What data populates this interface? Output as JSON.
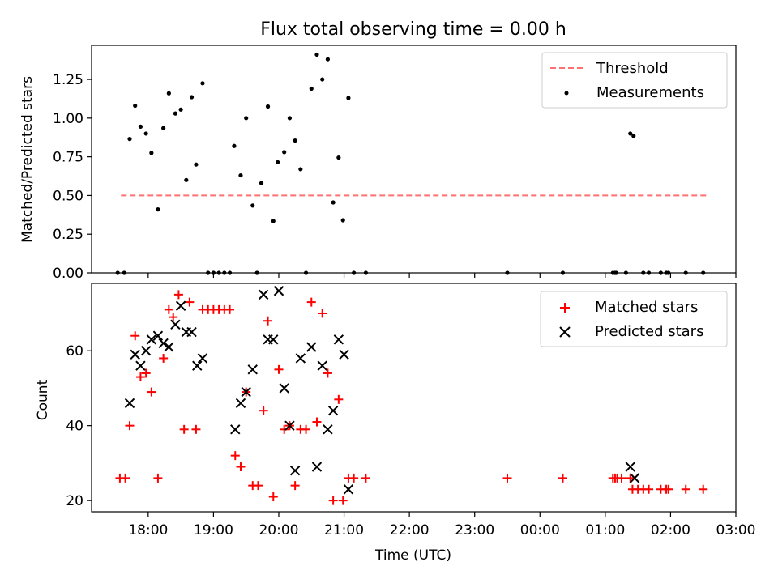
{
  "title": "Flux total observing time = 0.00 h",
  "chart_data": [
    {
      "type": "scatter",
      "ylabel": "Matched/Predicted stars",
      "xlabel": "",
      "xlim": [
        "17:08",
        "03:00"
      ],
      "ylim": [
        0,
        1.47
      ],
      "yticks": [
        "0.00",
        "0.25",
        "0.50",
        "0.75",
        "1.00",
        "1.25"
      ],
      "grid": false,
      "legend_position": "top-right",
      "threshold": {
        "name": "Threshold",
        "value": 0.5,
        "x_start": "17:35",
        "x_end": "02:35",
        "color": "#ff7070"
      },
      "series": [
        {
          "name": "Measurements",
          "color": "#000000",
          "marker": "dot",
          "points": [
            [
              "17:32",
              0
            ],
            [
              "17:38",
              0
            ],
            [
              "17:43",
              0.865
            ],
            [
              "17:48",
              1.08
            ],
            [
              "17:53",
              0.945
            ],
            [
              "17:58",
              0.9
            ],
            [
              "18:03",
              0.775
            ],
            [
              "18:09",
              0.41
            ],
            [
              "18:14",
              0.935
            ],
            [
              "18:19",
              1.16
            ],
            [
              "18:25",
              1.03
            ],
            [
              "18:30",
              1.055
            ],
            [
              "18:35",
              0.6
            ],
            [
              "18:40",
              1.135
            ],
            [
              "18:44",
              0.7
            ],
            [
              "18:50",
              1.225
            ],
            [
              "18:55",
              0
            ],
            [
              "19:00",
              0
            ],
            [
              "19:05",
              0
            ],
            [
              "19:10",
              0
            ],
            [
              "19:15",
              0
            ],
            [
              "19:19",
              0.82
            ],
            [
              "19:25",
              0.63
            ],
            [
              "19:30",
              1.0
            ],
            [
              "19:36",
              0.435
            ],
            [
              "19:40",
              0
            ],
            [
              "19:44",
              0.58
            ],
            [
              "19:50",
              1.075
            ],
            [
              "19:55",
              0.335
            ],
            [
              "19:59",
              0.715
            ],
            [
              "20:05",
              0.78
            ],
            [
              "20:10",
              1.0
            ],
            [
              "20:15",
              0.855
            ],
            [
              "20:20",
              0.67
            ],
            [
              "20:25",
              0
            ],
            [
              "20:30",
              1.19
            ],
            [
              "20:35",
              1.41
            ],
            [
              "20:40",
              1.25
            ],
            [
              "20:45",
              1.38
            ],
            [
              "20:50",
              0.455
            ],
            [
              "20:55",
              0.745
            ],
            [
              "20:59",
              0.34
            ],
            [
              "21:04",
              1.13
            ],
            [
              "21:09",
              0
            ],
            [
              "21:20",
              0
            ],
            [
              "23:30",
              0
            ],
            [
              "00:21",
              0
            ],
            [
              "01:07",
              0
            ],
            [
              "01:09",
              0
            ],
            [
              "01:10",
              0
            ],
            [
              "01:19",
              0
            ],
            [
              "01:23",
              0.9
            ],
            [
              "01:26",
              0.885
            ],
            [
              "01:35",
              0
            ],
            [
              "01:40",
              0
            ],
            [
              "01:51",
              0
            ],
            [
              "01:56",
              0
            ],
            [
              "01:58",
              0
            ],
            [
              "02:14",
              0
            ],
            [
              "02:30",
              0
            ]
          ]
        }
      ]
    },
    {
      "type": "scatter",
      "ylabel": "Count",
      "xlabel": "Time (UTC)",
      "xlim": [
        "17:08",
        "03:00"
      ],
      "ylim": [
        17,
        78
      ],
      "yticks": [
        "20",
        "40",
        "60"
      ],
      "xticks": [
        "18:00",
        "19:00",
        "20:00",
        "21:00",
        "22:00",
        "23:00",
        "00:00",
        "01:00",
        "02:00",
        "03:00"
      ],
      "grid": false,
      "legend_position": "top-right",
      "series": [
        {
          "name": "Matched stars",
          "color": "#ff0000",
          "marker": "plus",
          "points": [
            [
              "17:34",
              26
            ],
            [
              "17:39",
              26
            ],
            [
              "17:43",
              40
            ],
            [
              "17:48",
              64
            ],
            [
              "17:53",
              53
            ],
            [
              "17:58",
              54
            ],
            [
              "18:03",
              49
            ],
            [
              "18:09",
              26
            ],
            [
              "18:14",
              58
            ],
            [
              "18:19",
              71
            ],
            [
              "18:23",
              69
            ],
            [
              "18:28",
              75
            ],
            [
              "18:33",
              39
            ],
            [
              "18:38",
              73
            ],
            [
              "18:44",
              39
            ],
            [
              "18:50",
              71
            ],
            [
              "18:55",
              71
            ],
            [
              "19:00",
              71
            ],
            [
              "19:05",
              71
            ],
            [
              "19:10",
              71
            ],
            [
              "19:15",
              71
            ],
            [
              "19:20",
              32
            ],
            [
              "19:25",
              29
            ],
            [
              "19:30",
              49
            ],
            [
              "19:36",
              24
            ],
            [
              "19:41",
              24
            ],
            [
              "19:46",
              44
            ],
            [
              "19:50",
              68
            ],
            [
              "19:55",
              21
            ],
            [
              "20:00",
              55
            ],
            [
              "20:05",
              39
            ],
            [
              "20:10",
              40
            ],
            [
              "20:15",
              24
            ],
            [
              "20:20",
              39
            ],
            [
              "20:25",
              39
            ],
            [
              "20:30",
              73
            ],
            [
              "20:35",
              41
            ],
            [
              "20:40",
              70
            ],
            [
              "20:45",
              54
            ],
            [
              "20:50",
              20
            ],
            [
              "20:55",
              47
            ],
            [
              "20:59",
              20
            ],
            [
              "21:04",
              26
            ],
            [
              "21:09",
              26
            ],
            [
              "21:20",
              26
            ],
            [
              "23:30",
              26
            ],
            [
              "00:21",
              26
            ],
            [
              "01:07",
              26
            ],
            [
              "01:09",
              26
            ],
            [
              "01:11",
              26
            ],
            [
              "01:15",
              26
            ],
            [
              "01:23",
              26
            ],
            [
              "01:25",
              23
            ],
            [
              "01:30",
              23
            ],
            [
              "01:35",
              23
            ],
            [
              "01:40",
              23
            ],
            [
              "01:51",
              23
            ],
            [
              "01:56",
              23
            ],
            [
              "01:58",
              23
            ],
            [
              "02:14",
              23
            ],
            [
              "02:30",
              23
            ]
          ]
        },
        {
          "name": "Predicted stars",
          "color": "#000000",
          "marker": "x",
          "points": [
            [
              "17:43",
              46
            ],
            [
              "17:48",
              59
            ],
            [
              "17:53",
              56
            ],
            [
              "17:58",
              60
            ],
            [
              "18:03",
              63
            ],
            [
              "18:09",
              64
            ],
            [
              "18:14",
              62
            ],
            [
              "18:19",
              61
            ],
            [
              "18:25",
              67
            ],
            [
              "18:30",
              72
            ],
            [
              "18:35",
              65
            ],
            [
              "18:40",
              65
            ],
            [
              "18:45",
              56
            ],
            [
              "18:50",
              58
            ],
            [
              "19:20",
              39
            ],
            [
              "19:25",
              46
            ],
            [
              "19:30",
              49
            ],
            [
              "19:36",
              55
            ],
            [
              "19:46",
              75
            ],
            [
              "19:50",
              63
            ],
            [
              "19:55",
              63
            ],
            [
              "20:00",
              76
            ],
            [
              "20:05",
              50
            ],
            [
              "20:10",
              40
            ],
            [
              "20:15",
              28
            ],
            [
              "20:20",
              58
            ],
            [
              "20:30",
              61
            ],
            [
              "20:35",
              29
            ],
            [
              "20:40",
              56
            ],
            [
              "20:45",
              39
            ],
            [
              "20:50",
              44
            ],
            [
              "20:55",
              63
            ],
            [
              "21:00",
              59
            ],
            [
              "21:04",
              23
            ],
            [
              "01:23",
              29
            ],
            [
              "01:27",
              26
            ]
          ]
        }
      ]
    }
  ]
}
